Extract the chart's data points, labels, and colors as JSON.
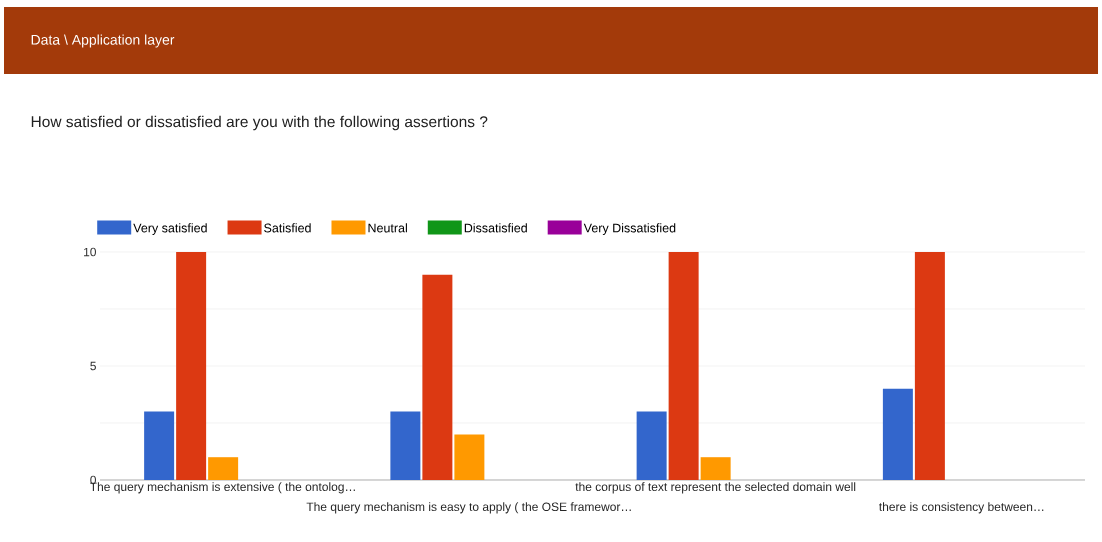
{
  "chart_data": {
    "type": "bar",
    "title": "Data \\ Application layer",
    "subtitle": "How satisfied or dissatisfied are you with the following assertions ?",
    "categories": [
      "The query mechanism is extensive ( the ontolog…",
      "The query mechanism is easy to apply ( the OSE framewor…",
      "the corpus of text represent the selected domain well",
      "there is consistency between…"
    ],
    "series": [
      {
        "name": "Very satisfied",
        "color": "#3366cc",
        "values": [
          3,
          3,
          3,
          4
        ]
      },
      {
        "name": "Satisfied",
        "color": "#dc3912",
        "values": [
          10,
          9,
          10,
          10
        ]
      },
      {
        "name": "Neutral",
        "color": "#ff9900",
        "values": [
          1,
          2,
          1,
          0
        ]
      },
      {
        "name": "Dissatisfied",
        "color": "#109618",
        "values": [
          0,
          0,
          0,
          0
        ]
      },
      {
        "name": "Very Dissatisfied",
        "color": "#990099",
        "values": [
          0,
          0,
          0,
          0
        ]
      }
    ],
    "ylim": [
      0,
      10
    ],
    "yticks": [
      0,
      {
        "value": 2.5,
        "label": null
      },
      5,
      {
        "value": 7.5,
        "label": null
      },
      10
    ],
    "grid": "y",
    "legend": "top"
  }
}
